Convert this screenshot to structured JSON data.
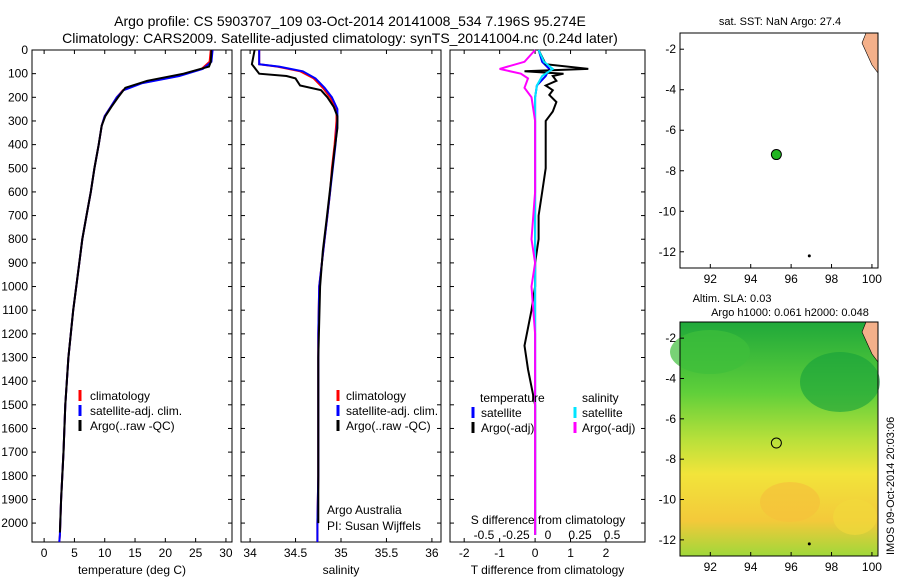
{
  "header": {
    "title_line1": "Argo profile: CS 5903707_109 03-Oct-2014 20141008_534 7.196S 95.274E",
    "title_line2": "Climatology: CARS2009. Satellite-adjusted climatology: synTS_20141004.nc (0.24d later)"
  },
  "colors": {
    "climatology": "#ff0000",
    "satellite": "#0000ff",
    "argo": "#000000",
    "sat_salinity": "#00e5ff",
    "argo_salinity": "#ff00ff",
    "land": "#f4b08a",
    "argo_marker": "#22b522"
  },
  "chart_data": [
    {
      "id": "temperature",
      "type": "line",
      "xlabel": "temperature (deg C)",
      "ylabel": "",
      "xlim": [
        -2,
        31
      ],
      "ylim": [
        2080,
        0
      ],
      "xticks": [
        0,
        5,
        10,
        15,
        20,
        25,
        30
      ],
      "yticks": [
        0,
        100,
        200,
        300,
        400,
        500,
        600,
        700,
        800,
        900,
        1000,
        1100,
        1200,
        1300,
        1400,
        1500,
        1600,
        1700,
        1800,
        1900,
        2000
      ],
      "legend": [
        "climatology",
        "satellite-adj. clim.",
        "Argo(..raw -QC)"
      ],
      "series": [
        {
          "name": "climatology",
          "color": "#ff0000",
          "x": [
            27.5,
            27.3,
            26,
            22,
            16,
            13,
            12,
            11,
            10,
            9.5,
            9,
            8.3,
            7.7,
            7,
            6.3,
            5.8,
            4.8,
            4,
            3.5,
            3.2,
            2.8,
            2.6,
            2.5
          ],
          "y": [
            0,
            50,
            80,
            110,
            140,
            170,
            200,
            240,
            280,
            320,
            400,
            500,
            600,
            700,
            800,
            900,
            1100,
            1300,
            1500,
            1700,
            1900,
            2050,
            2080
          ]
        },
        {
          "name": "satellite-adj. clim.",
          "color": "#0000ff",
          "x": [
            27.8,
            27.6,
            26.2,
            22.3,
            16.2,
            13.1,
            12,
            11,
            10,
            9.5,
            9,
            8.3,
            7.7,
            7,
            6.3,
            5.8,
            4.8,
            4,
            3.5,
            3.2,
            2.8,
            2.6,
            2.5
          ],
          "y": [
            0,
            50,
            80,
            110,
            140,
            170,
            200,
            240,
            280,
            320,
            400,
            500,
            600,
            700,
            800,
            900,
            1100,
            1300,
            1500,
            1700,
            1900,
            2050,
            2080
          ]
        },
        {
          "name": "Argo(..raw -QC)",
          "color": "#000000",
          "x": [
            27.6,
            27.5,
            27.2,
            23,
            17,
            13.4,
            12.2,
            11.1,
            10.1,
            9.5,
            9,
            8.3,
            7.7,
            7,
            6.3,
            5.8,
            4.8,
            4,
            3.5,
            3.2,
            2.8,
            2.6
          ],
          "y": [
            0,
            50,
            70,
            100,
            130,
            160,
            200,
            240,
            280,
            320,
            400,
            500,
            600,
            700,
            800,
            900,
            1100,
            1300,
            1500,
            1700,
            1900,
            2040
          ]
        }
      ]
    },
    {
      "id": "salinity",
      "type": "line",
      "xlabel": "salinity",
      "ylabel": "",
      "xlim": [
        33.9,
        36.1
      ],
      "ylim": [
        2080,
        0
      ],
      "xticks": [
        34,
        34.5,
        35,
        35.5,
        36
      ],
      "legend": [
        "climatology",
        "satellite-adj. clim.",
        "Argo(..raw -QC)"
      ],
      "annotation": [
        "Argo Australia",
        "PI: Susan Wijffels"
      ],
      "series": [
        {
          "name": "climatology",
          "color": "#ff0000",
          "x": [
            34.1,
            34.1,
            34.3,
            34.55,
            34.7,
            34.8,
            34.88,
            34.95,
            34.95,
            34.93,
            34.9,
            34.88,
            34.85,
            34.82,
            34.79,
            34.76,
            34.75,
            34.75,
            34.75,
            34.75,
            34.74,
            34.74
          ],
          "y": [
            0,
            60,
            70,
            90,
            120,
            160,
            200,
            250,
            300,
            400,
            500,
            600,
            700,
            800,
            900,
            1000,
            1200,
            1400,
            1600,
            1800,
            2000,
            2080
          ]
        },
        {
          "name": "satellite-adj. clim.",
          "color": "#0000ff",
          "x": [
            34.1,
            34.1,
            34.32,
            34.58,
            34.72,
            34.82,
            34.9,
            34.96,
            34.96,
            34.94,
            34.91,
            34.88,
            34.85,
            34.82,
            34.79,
            34.76,
            34.75,
            34.75,
            34.75,
            34.75,
            34.74,
            34.74
          ],
          "y": [
            0,
            60,
            70,
            90,
            120,
            160,
            200,
            250,
            300,
            400,
            500,
            600,
            700,
            800,
            900,
            1000,
            1200,
            1400,
            1600,
            1800,
            2000,
            2080
          ]
        },
        {
          "name": "Argo(..raw -QC)",
          "color": "#000000",
          "x": [
            34.05,
            34.02,
            34.1,
            34.4,
            34.5,
            34.55,
            34.78,
            34.85,
            34.92,
            34.96,
            34.96,
            34.93,
            34.9,
            34.87,
            34.84,
            34.8,
            34.77,
            34.75,
            34.75,
            34.75
          ],
          "y": [
            0,
            60,
            100,
            110,
            120,
            150,
            170,
            200,
            240,
            280,
            330,
            420,
            520,
            620,
            720,
            850,
            1000,
            1300,
            1600,
            2000
          ]
        }
      ]
    },
    {
      "id": "difference",
      "type": "line",
      "xlabel": "T difference from climatology",
      "xlabel_top": "S difference from climatology",
      "ylabel": "",
      "xlim": [
        -2.4,
        3.1
      ],
      "ylim": [
        2080,
        0
      ],
      "xticks": [
        -2,
        -1,
        0,
        1,
        2
      ],
      "xticks_top": [
        "-0.5",
        "-0.25",
        "0",
        "0.25",
        "0.5"
      ],
      "legend_left": {
        "title": "temperature",
        "items": [
          "satellite",
          "Argo(-adj)"
        ]
      },
      "legend_right": {
        "title": "salinity",
        "items": [
          "satellite",
          "Argo(-adj)"
        ]
      },
      "series": [
        {
          "name": "T satellite",
          "color": "#0000ff",
          "x": [
            0.1,
            0.2,
            0.4,
            0.3,
            0.05,
            0,
            0,
            0,
            0
          ],
          "y": [
            0,
            50,
            80,
            110,
            150,
            200,
            500,
            1000,
            2050
          ]
        },
        {
          "name": "T Argo(-adj)",
          "color": "#000000",
          "x": [
            0.1,
            0.3,
            1.5,
            -0.3,
            0.8,
            0.5,
            0.6,
            0.3,
            0.5,
            0.4,
            0.6,
            0.5,
            0.4,
            0.3,
            0.3,
            0.3,
            0.2,
            0.1,
            0.1,
            0,
            0,
            -0.1,
            -0.3,
            -0.2,
            0,
            0,
            0
          ],
          "y": [
            0,
            60,
            80,
            90,
            100,
            110,
            130,
            150,
            170,
            190,
            220,
            260,
            280,
            300,
            400,
            500,
            600,
            700,
            800,
            900,
            1000,
            1100,
            1250,
            1350,
            1500,
            1800,
            2050
          ]
        },
        {
          "name": "S satellite",
          "color": "#00e5ff",
          "x": [
            0.1,
            0.25,
            0.5,
            0.2,
            0.05,
            0,
            0,
            0
          ],
          "y": [
            0,
            50,
            80,
            110,
            150,
            200,
            1000,
            2050
          ]
        },
        {
          "name": "S Argo(-adj)",
          "color": "#ff00ff",
          "x": [
            0,
            -0.3,
            -1,
            -0.4,
            -0.2,
            -0.3,
            -0.1,
            0,
            0,
            -0.1,
            0,
            -0.1,
            0,
            0,
            0
          ],
          "y": [
            0,
            50,
            80,
            100,
            120,
            160,
            200,
            300,
            600,
            800,
            900,
            1000,
            1200,
            1500,
            2050
          ]
        }
      ]
    },
    {
      "id": "map_sst",
      "type": "scatter",
      "title": "sat. SST: NaN Argo: 27.4",
      "xlim": [
        90.5,
        100.3
      ],
      "ylim": [
        -12.8,
        -1.2
      ],
      "xticks": [
        92,
        94,
        96,
        98,
        100
      ],
      "yticks": [
        -2,
        -4,
        -6,
        -8,
        -10,
        -12
      ],
      "points": [
        {
          "x": 95.27,
          "y": -7.2
        }
      ]
    },
    {
      "id": "map_sla",
      "type": "heatmap",
      "title_line1": "Altim. SLA: 0.03",
      "title_line2": "Argo h1000: 0.061 h2000: 0.048",
      "xlim": [
        90.5,
        100.3
      ],
      "ylim": [
        -12.8,
        -1.2
      ],
      "xticks": [
        92,
        94,
        96,
        98,
        100
      ],
      "yticks": [
        -2,
        -4,
        -6,
        -8,
        -10,
        -12
      ],
      "points": [
        {
          "x": 95.27,
          "y": -7.2
        }
      ]
    }
  ],
  "footer": {
    "stamp": "IMOS 09-Oct-2014 20:03:06"
  }
}
